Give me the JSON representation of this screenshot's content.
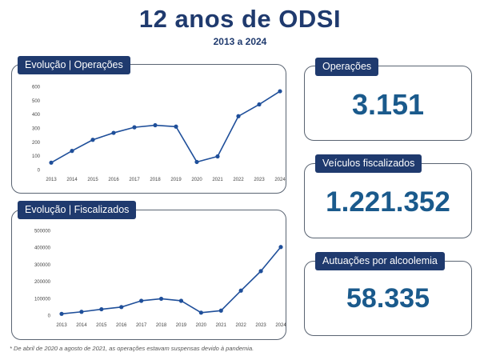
{
  "header": {
    "title": "12 anos de ODSI",
    "subtitle": "2013 a 2024"
  },
  "stats": [
    {
      "label": "Operações",
      "value": "3.151"
    },
    {
      "label": "Veículos fiscalizados",
      "value": "1.221.352"
    },
    {
      "label": "Autuações por alcoolemia",
      "value": "58.335"
    }
  ],
  "footnote": "* De abril de 2020 a agosto de 2021, as operações estavam suspensas devido à pandemia.",
  "colors": {
    "navy": "#1f3a6e",
    "line": "#1f4f9a",
    "stat": "#1a5a8c",
    "border": "#5a6472"
  },
  "chart_data": [
    {
      "type": "line",
      "title": "Evolução | Operações",
      "x": [
        "2013",
        "2014",
        "2015",
        "2016",
        "2017",
        "2018",
        "2019",
        "2020",
        "2021",
        "2022",
        "2023",
        "2024"
      ],
      "y": [
        50,
        135,
        215,
        265,
        305,
        320,
        310,
        55,
        95,
        385,
        470,
        565
      ],
      "yticks": [
        "0",
        "100",
        "200",
        "300",
        "400",
        "500",
        "600"
      ],
      "ylim": [
        0,
        600
      ],
      "grid": false
    },
    {
      "type": "line",
      "title": "Evolução | Fiscalizados",
      "x": [
        "2013",
        "2014",
        "2015",
        "2016",
        "2017",
        "2018",
        "2019",
        "2020",
        "2021",
        "2022",
        "2023",
        "2024"
      ],
      "y": [
        8000,
        20000,
        35000,
        48000,
        85000,
        97000,
        85000,
        15000,
        27000,
        145000,
        260000,
        402000
      ],
      "yticks": [
        "0",
        "100000",
        "200000",
        "300000",
        "400000",
        "500000"
      ],
      "ylim": [
        0,
        500000
      ],
      "grid": false
    }
  ]
}
